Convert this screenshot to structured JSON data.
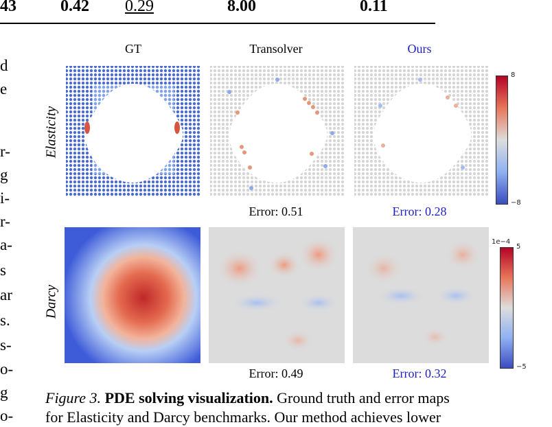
{
  "table_row": {
    "cells": [
      "43",
      "0.42",
      "0.29",
      "8.00",
      "0.11"
    ]
  },
  "left_text": {
    "lines": [
      "d",
      "e",
      "",
      "r-",
      "g",
      "i-",
      "r-",
      "a-",
      "s",
      "ar",
      "s.",
      "s-",
      "o-",
      "g",
      "o-"
    ]
  },
  "figure": {
    "columns": [
      "GT",
      "Transolver",
      "Ours"
    ],
    "rows": [
      "Elasticity",
      "Darcy"
    ],
    "elasticity_errors": {
      "transolver": "Error: 0.51",
      "ours": "Error: 0.28"
    },
    "darcy_errors": {
      "transolver": "Error: 0.49",
      "ours": "Error: 0.32"
    },
    "elasticity_colorbar": {
      "max": "8",
      "min": "−8"
    },
    "darcy_colorbar": {
      "scale": "1e−4",
      "max": "5",
      "min": "−5"
    },
    "colors": {
      "ours_accent": "#1f1fbf",
      "cmap_low": "#3b4cc0",
      "cmap_mid": "#dddddd",
      "cmap_high": "#b40426"
    }
  },
  "caption": {
    "label": "Figure 3.",
    "bold": "PDE solving visualization.",
    "rest1": "Ground truth and error maps",
    "line2": "for Elasticity and Darcy benchmarks. Our method achieves lower"
  }
}
